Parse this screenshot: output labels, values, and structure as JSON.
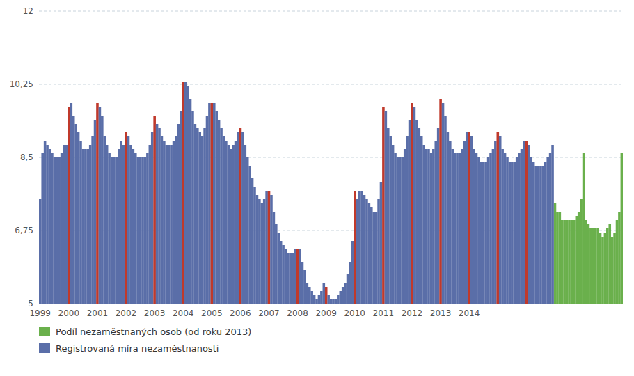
{
  "chart_data": {
    "type": "bar",
    "categories": [
      "1999",
      null,
      null,
      null,
      null,
      null,
      null,
      null,
      null,
      null,
      null,
      null,
      "2000",
      null,
      null,
      null,
      null,
      null,
      null,
      null,
      null,
      null,
      null,
      null,
      "2001",
      null,
      null,
      null,
      null,
      null,
      null,
      null,
      null,
      null,
      null,
      null,
      "2002",
      null,
      null,
      null,
      null,
      null,
      null,
      null,
      null,
      null,
      null,
      null,
      "2003",
      null,
      null,
      null,
      null,
      null,
      null,
      null,
      null,
      null,
      null,
      null,
      "2004",
      null,
      null,
      null,
      null,
      null,
      null,
      null,
      null,
      null,
      null,
      null,
      "2005",
      null,
      null,
      null,
      null,
      null,
      null,
      null,
      null,
      null,
      null,
      null,
      "2006",
      null,
      null,
      null,
      null,
      null,
      null,
      null,
      null,
      null,
      null,
      null,
      "2007",
      null,
      null,
      null,
      null,
      null,
      null,
      null,
      null,
      null,
      null,
      null,
      "2008",
      null,
      null,
      null,
      null,
      null,
      null,
      null,
      null,
      null,
      null,
      null,
      "2009",
      null,
      null,
      null,
      null,
      null,
      null,
      null,
      null,
      null,
      null,
      null,
      "2010",
      null,
      null,
      null,
      null,
      null,
      null,
      null,
      null,
      null,
      null,
      null,
      "2011",
      null,
      null,
      null,
      null,
      null,
      null,
      null,
      null,
      null,
      null,
      null,
      "2012",
      null,
      null,
      null,
      null,
      null,
      null,
      null,
      null,
      null,
      null,
      null,
      "2013",
      null,
      null,
      null,
      null,
      null,
      null,
      null,
      null,
      null,
      null,
      null,
      "2014",
      null,
      null,
      null,
      null,
      null,
      null,
      null,
      null,
      null,
      null,
      null,
      null,
      null,
      null,
      null,
      null,
      null,
      null,
      null,
      null,
      null,
      null,
      null,
      null,
      null,
      null,
      null,
      null,
      null,
      null,
      null,
      null,
      null,
      null,
      null,
      null,
      null,
      null,
      null,
      null,
      null,
      null,
      null,
      null,
      null,
      null,
      null,
      null,
      null,
      null,
      null,
      null,
      null,
      null,
      null,
      null,
      null,
      null,
      null,
      null,
      null,
      null,
      null,
      null
    ],
    "series": [
      {
        "name": "Podíl nezaměstnaných osob (od roku 2013)",
        "color": "#6ab04c",
        "values": [
          null,
          null,
          null,
          null,
          null,
          null,
          null,
          null,
          null,
          null,
          null,
          null,
          null,
          null,
          null,
          null,
          null,
          null,
          null,
          null,
          null,
          null,
          null,
          null,
          null,
          null,
          null,
          null,
          null,
          null,
          null,
          null,
          null,
          null,
          null,
          null,
          null,
          null,
          null,
          null,
          null,
          null,
          null,
          null,
          null,
          null,
          null,
          null,
          null,
          null,
          null,
          null,
          null,
          null,
          null,
          null,
          null,
          null,
          null,
          null,
          null,
          null,
          null,
          null,
          null,
          null,
          null,
          null,
          null,
          null,
          null,
          null,
          null,
          null,
          null,
          null,
          null,
          null,
          null,
          null,
          null,
          null,
          null,
          null,
          null,
          null,
          null,
          null,
          null,
          null,
          null,
          null,
          null,
          null,
          null,
          null,
          null,
          null,
          null,
          null,
          null,
          null,
          null,
          null,
          null,
          null,
          null,
          null,
          null,
          null,
          null,
          null,
          null,
          null,
          null,
          null,
          null,
          null,
          null,
          null,
          null,
          null,
          null,
          null,
          null,
          null,
          null,
          null,
          null,
          null,
          null,
          null,
          null,
          null,
          null,
          null,
          null,
          null,
          null,
          null,
          null,
          null,
          null,
          null,
          null,
          null,
          null,
          null,
          null,
          null,
          null,
          null,
          null,
          null,
          null,
          null,
          null,
          null,
          null,
          null,
          null,
          null,
          null,
          null,
          null,
          null,
          null,
          null,
          null,
          null,
          null,
          null,
          null,
          null,
          null,
          null,
          null,
          null,
          null,
          null,
          null,
          null,
          null,
          null,
          null,
          null,
          null,
          null,
          null,
          null,
          null,
          null,
          null,
          null,
          null,
          null,
          null,
          null,
          null,
          null,
          null,
          null,
          null,
          null,
          null,
          null,
          null,
          null,
          null,
          null,
          null,
          null,
          null,
          null,
          null,
          null,
          7.4,
          7.2,
          7.2,
          7.0,
          7.0,
          7.0,
          7.0,
          7.0,
          7.0,
          7.1,
          7.2,
          7.5,
          8.6,
          7.0,
          6.9,
          6.8,
          6.8,
          6.8,
          6.8,
          6.7,
          6.6,
          6.7,
          6.8,
          6.9,
          6.6,
          6.7,
          7.0,
          7.2,
          8.6
        ]
      },
      {
        "name": "Registrovaná míra nezaměstnanosti",
        "color": "#5a6ea8",
        "values": [
          7.5,
          8.6,
          8.9,
          8.8,
          8.7,
          8.6,
          8.5,
          8.5,
          8.5,
          8.6,
          8.8,
          8.8,
          9.7,
          9.8,
          9.5,
          9.3,
          9.1,
          8.9,
          8.7,
          8.7,
          8.7,
          8.8,
          9.0,
          9.4,
          9.8,
          9.7,
          9.5,
          9.0,
          8.8,
          8.6,
          8.5,
          8.5,
          8.5,
          8.7,
          8.9,
          8.8,
          9.1,
          9.0,
          8.8,
          8.7,
          8.6,
          8.5,
          8.5,
          8.5,
          8.5,
          8.6,
          8.8,
          9.1,
          9.5,
          9.3,
          9.2,
          9.0,
          8.9,
          8.8,
          8.8,
          8.8,
          8.9,
          9.0,
          9.3,
          9.6,
          10.3,
          10.3,
          10.2,
          9.9,
          9.6,
          9.3,
          9.2,
          9.1,
          9.0,
          9.2,
          9.5,
          9.8,
          9.8,
          9.8,
          9.6,
          9.4,
          9.2,
          9.0,
          8.9,
          8.8,
          8.7,
          8.8,
          8.9,
          9.1,
          9.2,
          9.1,
          8.8,
          8.5,
          8.3,
          8.0,
          7.8,
          7.6,
          7.5,
          7.4,
          7.5,
          7.7,
          7.7,
          7.6,
          7.2,
          6.9,
          6.7,
          6.5,
          6.4,
          6.3,
          6.2,
          6.2,
          6.2,
          6.3,
          6.3,
          6.3,
          6.0,
          5.8,
          5.5,
          5.4,
          5.3,
          5.2,
          5.1,
          5.2,
          5.3,
          5.5,
          5.4,
          5.2,
          5.1,
          5.1,
          5.1,
          5.2,
          5.3,
          5.4,
          5.5,
          5.7,
          6.0,
          6.5,
          7.7,
          7.5,
          7.7,
          7.7,
          7.6,
          7.5,
          7.4,
          7.3,
          7.2,
          7.2,
          7.5,
          7.9,
          9.7,
          9.6,
          9.2,
          9.0,
          8.8,
          8.6,
          8.5,
          8.5,
          8.5,
          8.7,
          9.0,
          9.4,
          9.8,
          9.7,
          9.4,
          9.2,
          9.0,
          8.8,
          8.7,
          8.7,
          8.6,
          8.7,
          8.9,
          9.2,
          9.9,
          9.8,
          9.5,
          9.1,
          8.9,
          8.7,
          8.6,
          8.6,
          8.6,
          8.7,
          8.9,
          9.1,
          9.1,
          9.0,
          8.7,
          8.6,
          8.5,
          8.4,
          8.4,
          8.4,
          8.5,
          8.6,
          8.7,
          8.9,
          9.1,
          9.0,
          8.7,
          8.6,
          8.5,
          8.4,
          8.4,
          8.4,
          8.5,
          8.6,
          8.7,
          8.9,
          8.9,
          8.8,
          8.5,
          8.4,
          8.3,
          8.3,
          8.3,
          8.3,
          8.4,
          8.5,
          8.6,
          8.8,
          null,
          null,
          null,
          null,
          null,
          null,
          null,
          null,
          null,
          null,
          null,
          null,
          null,
          null,
          null,
          null,
          null,
          null,
          null,
          null,
          null,
          null,
          null,
          null,
          null,
          null,
          null,
          null,
          null
        ],
        "colors": [
          "#5a6ea8",
          "#5a6ea8",
          "#5a6ea8",
          "#5a6ea8",
          "#5a6ea8",
          "#5a6ea8",
          "#5a6ea8",
          "#5a6ea8",
          "#5a6ea8",
          "#5a6ea8",
          "#5a6ea8",
          "#5a6ea8",
          "#c0392b",
          "#5a6ea8",
          "#5a6ea8",
          "#5a6ea8",
          "#5a6ea8",
          "#5a6ea8",
          "#5a6ea8",
          "#5a6ea8",
          "#5a6ea8",
          "#5a6ea8",
          "#5a6ea8",
          "#5a6ea8",
          "#c0392b",
          "#5a6ea8",
          "#5a6ea8",
          "#5a6ea8",
          "#5a6ea8",
          "#5a6ea8",
          "#5a6ea8",
          "#5a6ea8",
          "#5a6ea8",
          "#5a6ea8",
          "#5a6ea8",
          "#5a6ea8",
          "#c0392b",
          "#5a6ea8",
          "#5a6ea8",
          "#5a6ea8",
          "#5a6ea8",
          "#5a6ea8",
          "#5a6ea8",
          "#5a6ea8",
          "#5a6ea8",
          "#5a6ea8",
          "#5a6ea8",
          "#5a6ea8",
          "#c0392b",
          "#5a6ea8",
          "#5a6ea8",
          "#5a6ea8",
          "#5a6ea8",
          "#5a6ea8",
          "#5a6ea8",
          "#5a6ea8",
          "#5a6ea8",
          "#5a6ea8",
          "#5a6ea8",
          "#5a6ea8",
          "#c0392b",
          "#5a6ea8",
          "#5a6ea8",
          "#5a6ea8",
          "#5a6ea8",
          "#5a6ea8",
          "#5a6ea8",
          "#5a6ea8",
          "#5a6ea8",
          "#5a6ea8",
          "#5a6ea8",
          "#5a6ea8",
          "#c0392b",
          "#5a6ea8",
          "#5a6ea8",
          "#5a6ea8",
          "#5a6ea8",
          "#5a6ea8",
          "#5a6ea8",
          "#5a6ea8",
          "#5a6ea8",
          "#5a6ea8",
          "#5a6ea8",
          "#5a6ea8",
          "#c0392b",
          "#5a6ea8",
          "#5a6ea8",
          "#5a6ea8",
          "#5a6ea8",
          "#5a6ea8",
          "#5a6ea8",
          "#5a6ea8",
          "#5a6ea8",
          "#5a6ea8",
          "#5a6ea8",
          "#5a6ea8",
          "#c0392b",
          "#5a6ea8",
          "#5a6ea8",
          "#5a6ea8",
          "#5a6ea8",
          "#5a6ea8",
          "#5a6ea8",
          "#5a6ea8",
          "#5a6ea8",
          "#5a6ea8",
          "#5a6ea8",
          "#5a6ea8",
          "#c0392b",
          "#5a6ea8",
          "#5a6ea8",
          "#5a6ea8",
          "#5a6ea8",
          "#5a6ea8",
          "#5a6ea8",
          "#5a6ea8",
          "#5a6ea8",
          "#5a6ea8",
          "#5a6ea8",
          "#5a6ea8",
          "#c0392b",
          "#5a6ea8",
          "#5a6ea8",
          "#5a6ea8",
          "#5a6ea8",
          "#5a6ea8",
          "#5a6ea8",
          "#5a6ea8",
          "#5a6ea8",
          "#5a6ea8",
          "#5a6ea8",
          "#5a6ea8",
          "#c0392b",
          "#5a6ea8",
          "#5a6ea8",
          "#5a6ea8",
          "#5a6ea8",
          "#5a6ea8",
          "#5a6ea8",
          "#5a6ea8",
          "#5a6ea8",
          "#5a6ea8",
          "#5a6ea8",
          "#5a6ea8",
          "#c0392b",
          "#5a6ea8",
          "#5a6ea8",
          "#5a6ea8",
          "#5a6ea8",
          "#5a6ea8",
          "#5a6ea8",
          "#5a6ea8",
          "#5a6ea8",
          "#5a6ea8",
          "#5a6ea8",
          "#5a6ea8",
          "#c0392b",
          "#5a6ea8",
          "#5a6ea8",
          "#5a6ea8",
          "#5a6ea8",
          "#5a6ea8",
          "#5a6ea8",
          "#5a6ea8",
          "#5a6ea8",
          "#5a6ea8",
          "#5a6ea8",
          "#5a6ea8",
          "#c0392b",
          "#5a6ea8",
          "#5a6ea8",
          "#5a6ea8",
          "#5a6ea8",
          "#5a6ea8",
          "#5a6ea8",
          "#5a6ea8",
          "#5a6ea8",
          "#5a6ea8",
          "#5a6ea8",
          "#5a6ea8",
          "#c0392b",
          "#5a6ea8",
          "#5a6ea8",
          "#5a6ea8",
          "#5a6ea8",
          "#5a6ea8",
          "#5a6ea8",
          "#5a6ea8",
          "#5a6ea8",
          "#5a6ea8",
          "#5a6ea8",
          "#5a6ea8",
          "#c0392b",
          "#5a6ea8",
          "#5a6ea8",
          "#5a6ea8",
          "#5a6ea8",
          "#5a6ea8",
          "#5a6ea8",
          "#5a6ea8",
          "#5a6ea8",
          "#5a6ea8",
          "#5a6ea8",
          "#5a6ea8",
          "#c0392b",
          "#5a6ea8",
          "#5a6ea8",
          "#5a6ea8",
          "#5a6ea8",
          "#5a6ea8",
          "#5a6ea8",
          "#5a6ea8",
          "#5a6ea8",
          "#5a6ea8",
          "#5a6ea8",
          "#5a6ea8",
          null,
          null,
          null,
          null,
          null,
          null,
          null,
          null,
          null,
          null,
          null,
          null,
          null,
          null,
          null,
          null,
          null,
          null,
          null,
          null,
          null,
          null,
          null,
          null,
          null,
          null,
          null,
          null,
          null
        ]
      }
    ],
    "ylim": [
      5,
      12
    ],
    "yticks": [
      5,
      {
        "value": 6.75,
        "label": "6,75"
      },
      {
        "value": 8.5,
        "label": "8,5"
      },
      {
        "value": 10.25,
        "label": "10,25"
      },
      12
    ],
    "grid": true,
    "legend": "bottom-left"
  }
}
